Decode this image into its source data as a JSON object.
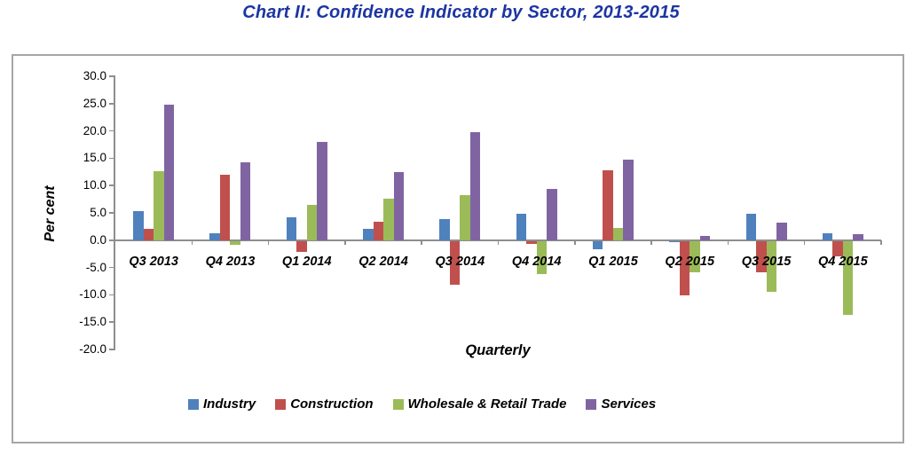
{
  "page": {
    "background": "#FFFFFF"
  },
  "chart_data": {
    "type": "bar",
    "title": "Chart II: Confidence Indicator by Sector, 2013-2015",
    "title_color": "#1C35A3",
    "xlabel": "Quarterly",
    "ylabel": "Per cent",
    "ylim": [
      -20,
      30
    ],
    "ytick_step": 5,
    "ytick_decimals": 1,
    "grid": false,
    "legend_position": "bottom",
    "axis_color": "#8E8E8E",
    "categories": [
      "Q3 2013",
      "Q4 2013",
      "Q1 2014",
      "Q2 2014",
      "Q3 2014",
      "Q4 2014",
      "Q1 2015",
      "Q2 2015",
      "Q3 2015",
      "Q4 2015"
    ],
    "series": [
      {
        "name": "Industry",
        "color": "#4F81BD",
        "values": [
          5.3,
          1.2,
          4.2,
          2.0,
          3.9,
          4.8,
          -1.5,
          -0.3,
          4.8,
          1.2
        ]
      },
      {
        "name": "Construction",
        "color": "#C0504D",
        "values": [
          2.0,
          12.0,
          -2.0,
          3.4,
          -8.0,
          -0.5,
          12.8,
          -10.0,
          -5.7,
          -2.9
        ]
      },
      {
        "name": "Wholesale & Retail Trade",
        "color": "#9BBB59",
        "values": [
          12.6,
          -0.7,
          6.4,
          7.6,
          8.3,
          -6.0,
          2.3,
          -5.7,
          -9.3,
          -13.5
        ]
      },
      {
        "name": "Services",
        "color": "#8064A2",
        "values": [
          24.8,
          14.2,
          18.0,
          12.5,
          19.7,
          9.4,
          14.7,
          0.8,
          3.2,
          1.1
        ]
      }
    ]
  }
}
